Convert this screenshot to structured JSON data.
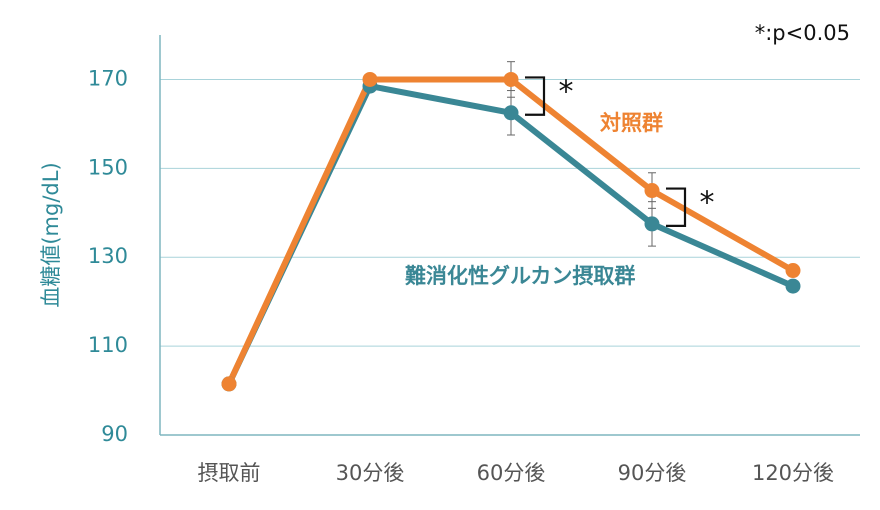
{
  "chart_data": {
    "type": "line",
    "note": "*:p<0.05",
    "ylabel": "血糖値(mg/dL)",
    "categories": [
      "摂取前",
      "30分後",
      "60分後",
      "90分後",
      "120分後"
    ],
    "y_ticks": [
      90,
      110,
      130,
      150,
      170
    ],
    "ylim": [
      90,
      180
    ],
    "grid": true,
    "series": [
      {
        "name": "対照群",
        "color": "#ee8332",
        "values": [
          101.5,
          170,
          170,
          145,
          127
        ],
        "error": [
          null,
          null,
          4,
          4,
          null
        ]
      },
      {
        "name": "難消化性グルカン摂取群",
        "color": "#3a8795",
        "values": [
          101.5,
          168.5,
          162.5,
          137.5,
          123.5
        ],
        "error": [
          null,
          null,
          5,
          5,
          null
        ]
      }
    ],
    "significance": [
      {
        "category": "60分後",
        "label": "*"
      },
      {
        "category": "90分後",
        "label": "*"
      }
    ]
  }
}
